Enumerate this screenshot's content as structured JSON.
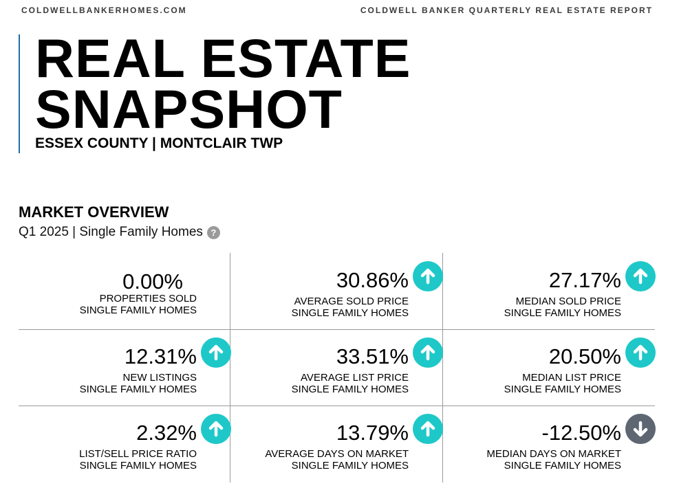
{
  "header": {
    "site": "COLDWELLBANKERHOMES.COM",
    "report": "COLDWELL BANKER QUARTERLY REAL ESTATE REPORT"
  },
  "hero": {
    "title": "REAL ESTATE\nSNAPSHOT",
    "subtitle": "ESSEX COUNTY | MONTCLAIR TWP"
  },
  "overview": {
    "heading": "MARKET OVERVIEW",
    "period": "Q1 2025 | Single Family Homes",
    "help_icon": "question-mark-icon",
    "up_color": "#1ec8c8",
    "down_color": "#5e6672"
  },
  "metrics": [
    {
      "value": "0.00%",
      "label1": "PROPERTIES SOLD",
      "label2": "SINGLE FAMILY HOMES",
      "trend": "none"
    },
    {
      "value": "30.86%",
      "label1": "AVERAGE SOLD PRICE",
      "label2": "SINGLE FAMILY HOMES",
      "trend": "up"
    },
    {
      "value": "27.17%",
      "label1": "MEDIAN SOLD PRICE",
      "label2": "SINGLE FAMILY HOMES",
      "trend": "up"
    },
    {
      "value": "12.31%",
      "label1": "NEW LISTINGS",
      "label2": "SINGLE FAMILY HOMES",
      "trend": "up"
    },
    {
      "value": "33.51%",
      "label1": "AVERAGE LIST PRICE",
      "label2": "SINGLE FAMILY HOMES",
      "trend": "up"
    },
    {
      "value": "20.50%",
      "label1": "MEDIAN LIST PRICE",
      "label2": "SINGLE FAMILY HOMES",
      "trend": "up"
    },
    {
      "value": "2.32%",
      "label1": "LIST/SELL PRICE RATIO",
      "label2": "SINGLE FAMILY HOMES",
      "trend": "up"
    },
    {
      "value": "13.79%",
      "label1": "AVERAGE DAYS ON MARKET",
      "label2": "SINGLE FAMILY HOMES",
      "trend": "up"
    },
    {
      "value": "-12.50%",
      "label1": "MEDIAN DAYS ON MARKET",
      "label2": "SINGLE FAMILY HOMES",
      "trend": "down"
    }
  ]
}
